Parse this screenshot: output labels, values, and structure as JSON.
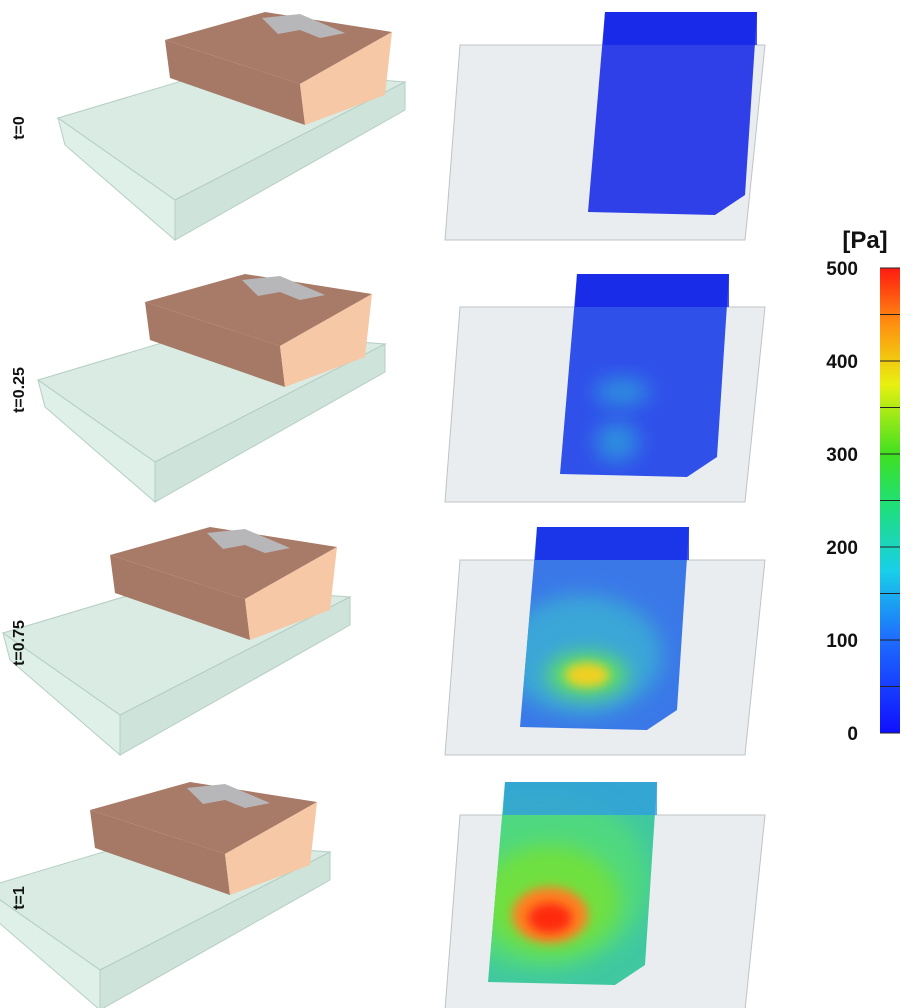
{
  "rows": [
    {
      "label": "t=0"
    },
    {
      "label": "t=0.25"
    },
    {
      "label": "t=0.75"
    },
    {
      "label": "t=1"
    }
  ],
  "colorbar": {
    "title": "[Pa]",
    "lim": [
      0,
      500
    ],
    "ticks": [
      0,
      100,
      200,
      300,
      400,
      500
    ],
    "minor_ticks": [
      50,
      150,
      250,
      350,
      450
    ]
  }
}
